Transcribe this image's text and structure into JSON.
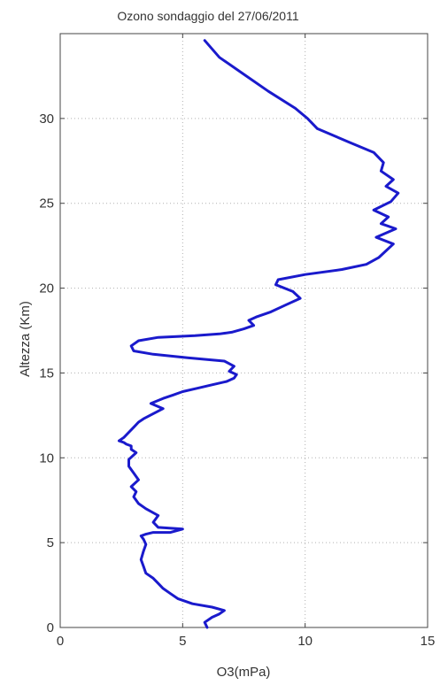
{
  "chart_data": {
    "type": "line",
    "title": "Ozono sondaggio del 27/06/2011",
    "xlabel": "O3(mPa)",
    "ylabel": "Altezza (Km)",
    "xlim": [
      0,
      15
    ],
    "ylim": [
      0,
      35
    ],
    "xticks": [
      0,
      5,
      10,
      15
    ],
    "yticks": [
      0,
      5,
      10,
      15,
      20,
      25,
      30
    ],
    "grid": true,
    "series": [
      {
        "color": "#1a1acc",
        "x": [
          6.0,
          5.9,
          6.2,
          6.5,
          6.7,
          6.2,
          5.4,
          4.8,
          4.5,
          4.2,
          4.0,
          3.8,
          3.5,
          3.4,
          3.3,
          3.4,
          3.5,
          3.4,
          3.3,
          3.5,
          3.8,
          4.5,
          5.0,
          4.0,
          3.8,
          4.0,
          3.5,
          3.2,
          3.0,
          3.1,
          2.9,
          3.2,
          3.0,
          2.8,
          2.8,
          3.1,
          2.9,
          2.9,
          2.7,
          2.6,
          2.4,
          2.6,
          2.8,
          3.0,
          3.2,
          3.4,
          3.8,
          4.2,
          3.7,
          4.2,
          4.6,
          5.0,
          5.6,
          6.2,
          6.8,
          7.1,
          7.2,
          6.9,
          7.1,
          6.7,
          5.2,
          3.8,
          3.0,
          2.9,
          3.2,
          4.0,
          5.5,
          6.5,
          7.0,
          7.5,
          7.9,
          7.7,
          8.0,
          8.6,
          9.2,
          9.8,
          9.5,
          8.8,
          8.9,
          10.0,
          11.5,
          12.5,
          13.0,
          13.3,
          13.6,
          12.9,
          13.7,
          13.1,
          13.4,
          12.8,
          13.5,
          13.8,
          13.3,
          13.6,
          13.1,
          13.2,
          12.8,
          11.8,
          10.5,
          10.1,
          9.6,
          8.5,
          7.5,
          6.5,
          5.9
        ],
        "y": [
          0.0,
          0.3,
          0.6,
          0.8,
          1.0,
          1.2,
          1.4,
          1.7,
          2.0,
          2.3,
          2.6,
          2.9,
          3.2,
          3.6,
          4.0,
          4.5,
          4.9,
          5.2,
          5.4,
          5.5,
          5.6,
          5.6,
          5.8,
          5.9,
          6.2,
          6.6,
          7.0,
          7.3,
          7.7,
          8.0,
          8.3,
          8.7,
          9.1,
          9.5,
          9.9,
          10.3,
          10.5,
          10.7,
          10.8,
          10.9,
          11.0,
          11.2,
          11.5,
          11.8,
          12.1,
          12.3,
          12.6,
          12.9,
          13.2,
          13.5,
          13.7,
          13.9,
          14.1,
          14.3,
          14.5,
          14.7,
          14.9,
          15.1,
          15.4,
          15.7,
          15.9,
          16.1,
          16.3,
          16.6,
          16.9,
          17.1,
          17.2,
          17.3,
          17.4,
          17.6,
          17.8,
          18.1,
          18.3,
          18.6,
          19.0,
          19.4,
          19.8,
          20.2,
          20.5,
          20.8,
          21.1,
          21.4,
          21.8,
          22.2,
          22.6,
          23.0,
          23.5,
          23.8,
          24.2,
          24.6,
          25.1,
          25.6,
          26.0,
          26.4,
          26.9,
          27.4,
          28.0,
          28.6,
          29.4,
          30.0,
          30.6,
          31.6,
          32.6,
          33.6,
          34.6
        ]
      }
    ]
  }
}
